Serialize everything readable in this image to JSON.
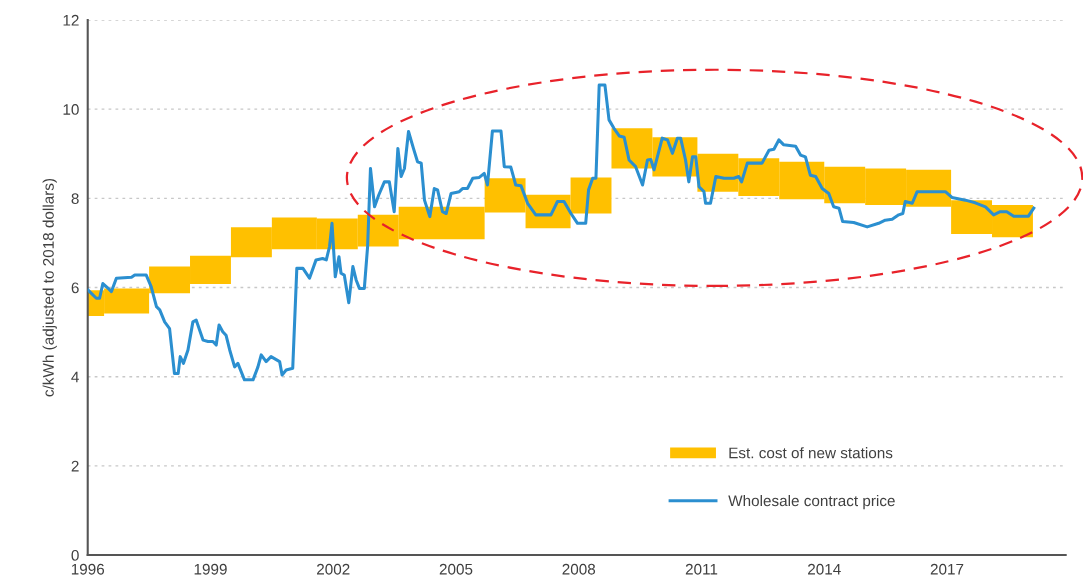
{
  "chart_data": {
    "type": "line",
    "ylabel": "c/kWh (adjusted to 2018 dollars)",
    "xlim": [
      1996,
      2019.9
    ],
    "xticks": [
      1996,
      1999,
      2002,
      2005,
      2008,
      2011,
      2014,
      2017
    ],
    "ylim": [
      0,
      12
    ],
    "yticks": [
      0,
      2,
      4,
      6,
      8,
      10,
      12
    ],
    "grid": "y",
    "legend": "lower right",
    "marker": "none",
    "line_style": "solid",
    "series": [
      {
        "name": "Est. cost of new stations",
        "type": "bar",
        "color": "#ffc000",
        "x": [
          1996.2,
          1996.95,
          1998.0,
          1999.0,
          2000.0,
          2001.05,
          2002.1,
          2003.1,
          2004.65,
          2006.2,
          2007.25,
          2008.3,
          2009.3,
          2010.35,
          2011.4,
          2012.4,
          2013.45,
          2014.5,
          2015.5,
          2016.55,
          2017.6,
          2018.6
        ],
        "base": [
          5.36,
          5.42,
          5.87,
          6.08,
          6.68,
          6.86,
          6.86,
          6.92,
          7.08,
          7.68,
          7.33,
          7.66,
          8.67,
          8.49,
          8.15,
          8.05,
          7.98,
          7.89,
          7.85,
          7.81,
          7.2,
          7.13
        ],
        "values": [
          0.58,
          0.56,
          0.6,
          0.63,
          0.67,
          0.71,
          0.69,
          0.71,
          0.73,
          0.77,
          0.75,
          0.81,
          0.9,
          0.88,
          0.85,
          0.85,
          0.84,
          0.82,
          0.82,
          0.83,
          0.76,
          0.72
        ]
      },
      {
        "name": "Wholesale contract price",
        "color": "#2b8fd0",
        "x": [
          1996.01,
          1996.21,
          1996.29,
          1996.37,
          1996.5,
          1996.58,
          1996.7,
          1997.07,
          1997.15,
          1997.43,
          1997.55,
          1997.68,
          1997.76,
          1997.88,
          1998.0,
          1998.12,
          1998.21,
          1998.26,
          1998.34,
          1998.45,
          1998.57,
          1998.65,
          1998.82,
          1998.94,
          1999.06,
          1999.14,
          1999.21,
          1999.3,
          1999.38,
          1999.47,
          1999.59,
          1999.67,
          1999.83,
          2000.04,
          2000.16,
          2000.24,
          2000.36,
          2000.48,
          2000.69,
          2000.75,
          2000.85,
          2001.01,
          2001.11,
          2001.26,
          2001.42,
          2001.58,
          2001.74,
          2001.83,
          2001.91,
          2001.97,
          2002.05,
          2002.14,
          2002.19,
          2002.27,
          2002.38,
          2002.48,
          2002.56,
          2002.64,
          2002.76,
          2002.84,
          2002.91,
          2003.01,
          2003.11,
          2003.25,
          2003.37,
          2003.49,
          2003.58,
          2003.66,
          2003.74,
          2003.84,
          2003.96,
          2004.06,
          2004.15,
          2004.23,
          2004.36,
          2004.47,
          2004.55,
          2004.67,
          2004.76,
          2004.88,
          2005.08,
          2005.16,
          2005.28,
          2005.41,
          2005.57,
          2005.69,
          2005.77,
          2005.89,
          2006.1,
          2006.18,
          2006.34,
          2006.46,
          2006.59,
          2006.75,
          2006.95,
          2007.32,
          2007.48,
          2007.64,
          2007.81,
          2007.97,
          2008.17,
          2008.24,
          2008.34,
          2008.42,
          2008.5,
          2008.64,
          2008.74,
          2008.86,
          2008.99,
          2009.11,
          2009.23,
          2009.39,
          2009.56,
          2009.68,
          2009.76,
          2009.84,
          2010.04,
          2010.17,
          2010.29,
          2010.41,
          2010.49,
          2010.61,
          2010.69,
          2010.78,
          2010.86,
          2010.94,
          2011.06,
          2011.1,
          2011.22,
          2011.35,
          2011.55,
          2011.79,
          2011.91,
          2011.98,
          2012.12,
          2012.48,
          2012.65,
          2012.77,
          2012.89,
          2013.01,
          2013.3,
          2013.42,
          2013.54,
          2013.66,
          2013.79,
          2013.95,
          2014.11,
          2014.23,
          2014.36,
          2014.45,
          2014.72,
          2015.05,
          2015.33,
          2015.49,
          2015.66,
          2015.82,
          2015.92,
          2015.98,
          2016.15,
          2016.27,
          2016.63,
          2016.96,
          2017.12,
          2017.45,
          2017.69,
          2017.94,
          2018.14,
          2018.3,
          2018.46,
          2018.63,
          2018.99,
          2019.12
        ],
        "values": [
          5.94,
          5.76,
          5.76,
          6.09,
          5.98,
          5.91,
          6.21,
          6.23,
          6.28,
          6.28,
          6.02,
          5.57,
          5.5,
          5.23,
          5.08,
          4.07,
          4.07,
          4.45,
          4.3,
          4.6,
          5.23,
          5.27,
          4.82,
          4.79,
          4.79,
          4.71,
          5.16,
          5.01,
          4.93,
          4.6,
          4.22,
          4.3,
          3.93,
          3.93,
          4.22,
          4.49,
          4.34,
          4.45,
          4.34,
          4.04,
          4.15,
          4.19,
          6.43,
          6.43,
          6.21,
          6.62,
          6.65,
          6.62,
          6.92,
          7.44,
          6.24,
          6.69,
          6.32,
          6.28,
          5.66,
          6.47,
          6.17,
          5.98,
          5.98,
          6.92,
          8.67,
          7.81,
          8.07,
          8.37,
          8.37,
          7.7,
          9.12,
          8.49,
          8.67,
          9.5,
          9.12,
          8.82,
          8.79,
          7.96,
          7.59,
          8.22,
          8.19,
          7.7,
          7.66,
          8.11,
          8.15,
          8.22,
          8.22,
          8.45,
          8.47,
          8.56,
          8.3,
          9.51,
          9.51,
          8.71,
          8.7,
          8.3,
          8.28,
          7.89,
          7.63,
          7.63,
          7.93,
          7.93,
          7.66,
          7.44,
          7.44,
          8.19,
          8.45,
          8.45,
          10.54,
          10.54,
          9.76,
          9.57,
          9.4,
          9.37,
          8.86,
          8.71,
          8.3,
          8.86,
          8.87,
          8.64,
          9.35,
          9.31,
          9.01,
          9.35,
          9.35,
          8.86,
          8.37,
          8.93,
          8.93,
          8.26,
          8.15,
          7.89,
          7.89,
          8.49,
          8.45,
          8.45,
          8.49,
          8.37,
          8.79,
          8.79,
          9.08,
          9.1,
          9.31,
          9.2,
          9.17,
          8.97,
          8.93,
          8.52,
          8.49,
          8.22,
          8.11,
          7.81,
          7.78,
          7.48,
          7.46,
          7.36,
          7.44,
          7.51,
          7.53,
          7.63,
          7.66,
          7.93,
          7.89,
          8.15,
          8.15,
          8.15,
          8.02,
          7.96,
          7.9,
          7.81,
          7.63,
          7.7,
          7.7,
          7.6,
          7.6,
          7.78
        ]
      }
    ]
  }
}
